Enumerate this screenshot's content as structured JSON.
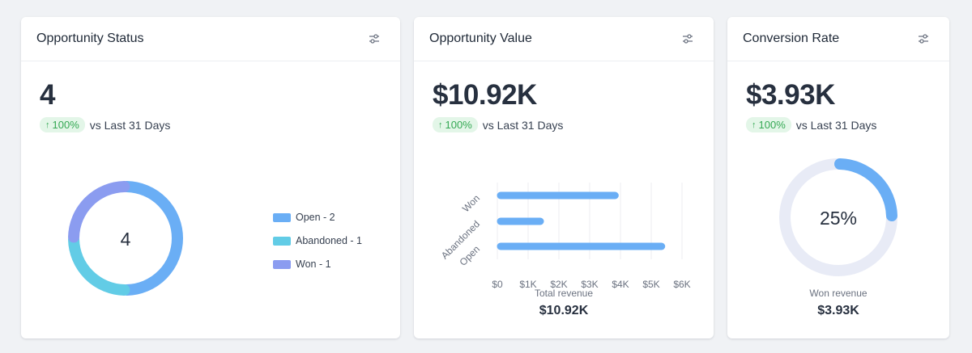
{
  "cards": [
    {
      "title": "Opportunity Status",
      "settings_icon": "sliders-icon",
      "value": "4",
      "delta": {
        "arrow": "↑",
        "pct": "100%",
        "text": "vs Last 31 Days"
      },
      "donut": {
        "center": "4"
      },
      "legend": [
        {
          "label": "Open - 2",
          "color": "#6aaef5"
        },
        {
          "label": "Abandoned - 1",
          "color": "#62cce6"
        },
        {
          "label": "Won - 1",
          "color": "#8b9cf0"
        }
      ]
    },
    {
      "title": "Opportunity Value",
      "settings_icon": "sliders-icon",
      "value": "$10.92K",
      "delta": {
        "arrow": "↑",
        "pct": "100%",
        "text": "vs Last 31 Days"
      },
      "caption": "Total revenue",
      "caption_value": "$10.92K"
    },
    {
      "title": "Conversion Rate",
      "settings_icon": "sliders-icon",
      "value": "$3.93K",
      "delta": {
        "arrow": "↑",
        "pct": "100%",
        "text": "vs Last 31 Days"
      },
      "gauge": {
        "label": "25%",
        "fraction": 0.25,
        "color": "#6aaef5",
        "track": "#e8ebf6"
      },
      "caption": "Won revenue",
      "caption_value": "$3.93K"
    }
  ],
  "chart_data": [
    {
      "type": "pie",
      "categories": [
        "Open",
        "Abandoned",
        "Won"
      ],
      "values": [
        2,
        1,
        1
      ],
      "colors": [
        "#6aaef5",
        "#62cce6",
        "#8b9cf0"
      ],
      "legend": "right"
    },
    {
      "type": "bar",
      "orientation": "horizontal",
      "categories": [
        "Won",
        "Abandoned",
        "Open"
      ],
      "values": [
        3930,
        1500,
        5440
      ],
      "xlim": [
        0,
        6000
      ],
      "xticks": [
        "$0",
        "$1K",
        "$2K",
        "$3K",
        "$4K",
        "$5K",
        "$6K"
      ],
      "grid": true,
      "color": "#6aaef5"
    }
  ]
}
